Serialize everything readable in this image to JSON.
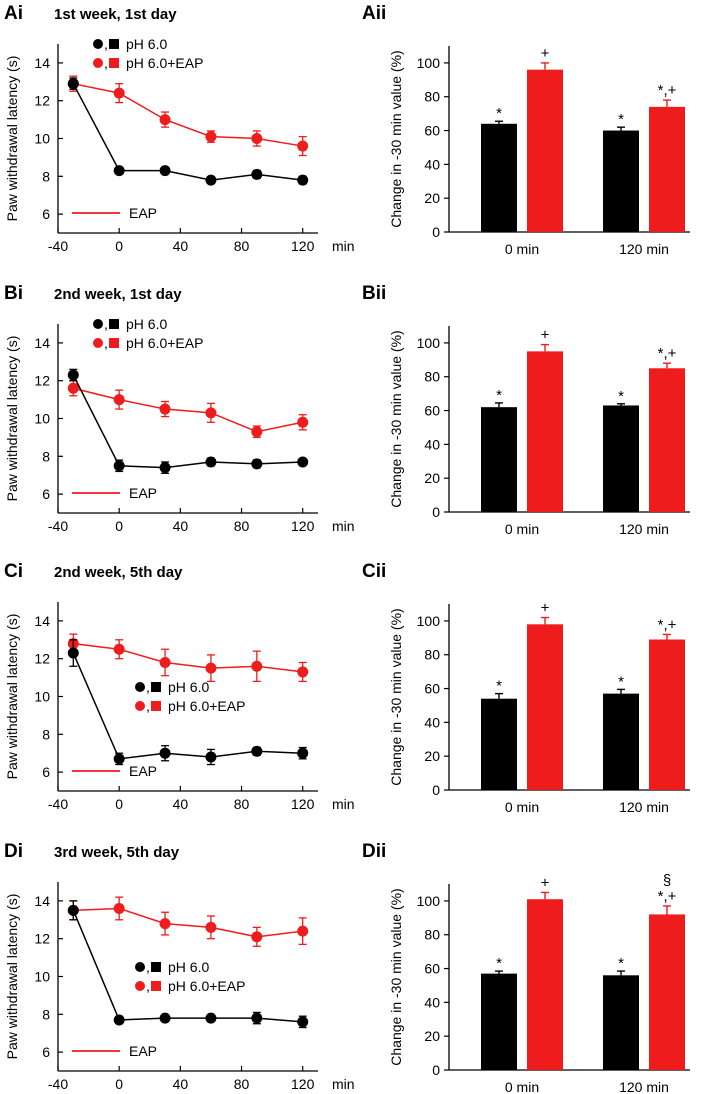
{
  "figure": {
    "rows": [
      {
        "line_panel_label": "Ai",
        "bar_panel_label": "Aii",
        "title": "1st week, 1st day"
      },
      {
        "line_panel_label": "Bi",
        "bar_panel_label": "Bii",
        "title": "2nd week, 1st day"
      },
      {
        "line_panel_label": "Ci",
        "bar_panel_label": "Cii",
        "title": "2nd week, 5th day"
      },
      {
        "line_panel_label": "Di",
        "bar_panel_label": "Dii",
        "title": "3rd week, 5th day"
      }
    ]
  },
  "colors": {
    "control": "#000000",
    "eap": "#ee1c1c"
  },
  "legend_separator": ",",
  "chart_data": [
    {
      "panel": "Ai",
      "type": "line",
      "title": "1st week, 1st day",
      "ylabel": "Paw withdrawal latency (s)",
      "xunit": "min",
      "x": [
        -30,
        0,
        30,
        60,
        90,
        120
      ],
      "xticks": [
        -40,
        0,
        40,
        80,
        120
      ],
      "yticks": [
        6,
        8,
        10,
        12,
        14
      ],
      "xlim": [
        -40,
        130
      ],
      "ylim": [
        5,
        15
      ],
      "legend_position": "top",
      "series": [
        {
          "name": "pH 6.0",
          "color": "#000000",
          "values": [
            12.9,
            8.3,
            8.3,
            7.8,
            8.1,
            7.8
          ],
          "errors": [
            0.3,
            0.1,
            0.1,
            0.1,
            0.2,
            0.2
          ]
        },
        {
          "name": "pH 6.0+EAP",
          "color": "#ee1c1c",
          "values": [
            12.9,
            12.4,
            11.0,
            10.1,
            10.0,
            9.6
          ],
          "errors": [
            0.4,
            0.5,
            0.4,
            0.3,
            0.4,
            0.5
          ]
        }
      ],
      "eap_bar_label": "EAP"
    },
    {
      "panel": "Aii",
      "type": "bar",
      "ylabel": "Change in -30 min value (%)",
      "categories": [
        "0 min",
        "120 min"
      ],
      "yticks": [
        0,
        20,
        40,
        60,
        80,
        100
      ],
      "ylim": [
        0,
        110
      ],
      "series": [
        {
          "name": "pH 6.0",
          "color": "#000000",
          "values": [
            64,
            60
          ],
          "errors": [
            1.5,
            2.0
          ]
        },
        {
          "name": "pH 6.0+EAP",
          "color": "#ee1c1c",
          "values": [
            96,
            74
          ],
          "errors": [
            4,
            4
          ]
        }
      ],
      "annotations": [
        [
          "*",
          "+"
        ],
        [
          "*",
          "*,+"
        ]
      ]
    },
    {
      "panel": "Bi",
      "type": "line",
      "title": "2nd week, 1st day",
      "ylabel": "Paw withdrawal latency (s)",
      "xunit": "min",
      "x": [
        -30,
        0,
        30,
        60,
        90,
        120
      ],
      "xticks": [
        -40,
        0,
        40,
        80,
        120
      ],
      "yticks": [
        6,
        8,
        10,
        12,
        14
      ],
      "xlim": [
        -40,
        130
      ],
      "ylim": [
        5,
        15
      ],
      "legend_position": "top",
      "series": [
        {
          "name": "pH 6.0",
          "color": "#000000",
          "values": [
            12.3,
            7.5,
            7.4,
            7.7,
            7.6,
            7.7
          ],
          "errors": [
            0.3,
            0.3,
            0.3,
            0.2,
            0.2,
            0.1
          ]
        },
        {
          "name": "pH 6.0+EAP",
          "color": "#ee1c1c",
          "values": [
            11.6,
            11.0,
            10.5,
            10.3,
            9.3,
            9.8
          ],
          "errors": [
            0.4,
            0.5,
            0.4,
            0.5,
            0.3,
            0.4
          ]
        }
      ],
      "eap_bar_label": "EAP"
    },
    {
      "panel": "Bii",
      "type": "bar",
      "ylabel": "Change in -30 min value (%)",
      "categories": [
        "0 min",
        "120 min"
      ],
      "yticks": [
        0,
        20,
        40,
        60,
        80,
        100
      ],
      "ylim": [
        0,
        110
      ],
      "series": [
        {
          "name": "pH 6.0",
          "color": "#000000",
          "values": [
            62,
            63
          ],
          "errors": [
            2.5,
            1.0
          ]
        },
        {
          "name": "pH 6.0+EAP",
          "color": "#ee1c1c",
          "values": [
            95,
            85
          ],
          "errors": [
            4,
            3
          ]
        }
      ],
      "annotations": [
        [
          "*",
          "+"
        ],
        [
          "*",
          "*,+"
        ]
      ]
    },
    {
      "panel": "Ci",
      "type": "line",
      "title": "2nd week, 5th day",
      "ylabel": "Paw withdrawal latency (s)",
      "xunit": "min",
      "x": [
        -30,
        0,
        30,
        60,
        90,
        120
      ],
      "xticks": [
        -40,
        0,
        40,
        80,
        120
      ],
      "yticks": [
        6,
        8,
        10,
        12,
        14
      ],
      "xlim": [
        -40,
        130
      ],
      "ylim": [
        5,
        15
      ],
      "legend_position": "middle-right",
      "series": [
        {
          "name": "pH 6.0",
          "color": "#000000",
          "values": [
            12.3,
            6.7,
            7.0,
            6.8,
            7.1,
            7.0
          ],
          "errors": [
            0.7,
            0.3,
            0.4,
            0.4,
            0.2,
            0.3
          ]
        },
        {
          "name": "pH 6.0+EAP",
          "color": "#ee1c1c",
          "values": [
            12.8,
            12.5,
            11.8,
            11.5,
            11.6,
            11.3
          ],
          "errors": [
            0.5,
            0.5,
            0.7,
            0.7,
            0.8,
            0.5
          ]
        }
      ],
      "eap_bar_label": "EAP"
    },
    {
      "panel": "Cii",
      "type": "bar",
      "ylabel": "Change in -30 min value (%)",
      "categories": [
        "0 min",
        "120 min"
      ],
      "yticks": [
        0,
        20,
        40,
        60,
        80,
        100
      ],
      "ylim": [
        0,
        110
      ],
      "series": [
        {
          "name": "pH 6.0",
          "color": "#000000",
          "values": [
            54,
            57
          ],
          "errors": [
            3,
            2.5
          ]
        },
        {
          "name": "pH 6.0+EAP",
          "color": "#ee1c1c",
          "values": [
            98,
            89
          ],
          "errors": [
            4,
            3
          ]
        }
      ],
      "annotations": [
        [
          "*",
          "+"
        ],
        [
          "*",
          "*,+"
        ]
      ]
    },
    {
      "panel": "Di",
      "type": "line",
      "title": "3rd week, 5th day",
      "ylabel": "Paw withdrawal latency (s)",
      "xunit": "min",
      "x": [
        -30,
        0,
        30,
        60,
        90,
        120
      ],
      "xticks": [
        -40,
        0,
        40,
        80,
        120
      ],
      "yticks": [
        6,
        8,
        10,
        12,
        14
      ],
      "xlim": [
        -40,
        130
      ],
      "ylim": [
        5,
        15
      ],
      "legend_position": "middle-right",
      "series": [
        {
          "name": "pH 6.0",
          "color": "#000000",
          "values": [
            13.5,
            7.7,
            7.8,
            7.8,
            7.8,
            7.6
          ],
          "errors": [
            0.5,
            0.1,
            0.1,
            0.1,
            0.3,
            0.3
          ]
        },
        {
          "name": "pH 6.0+EAP",
          "color": "#ee1c1c",
          "values": [
            13.5,
            13.6,
            12.8,
            12.6,
            12.1,
            12.4
          ],
          "errors": [
            0.5,
            0.6,
            0.6,
            0.6,
            0.5,
            0.7
          ]
        }
      ],
      "eap_bar_label": "EAP"
    },
    {
      "panel": "Dii",
      "type": "bar",
      "ylabel": "Change in -30 min value (%)",
      "categories": [
        "0 min",
        "120 min"
      ],
      "yticks": [
        0,
        20,
        40,
        60,
        80,
        100
      ],
      "ylim": [
        0,
        110
      ],
      "series": [
        {
          "name": "pH 6.0",
          "color": "#000000",
          "values": [
            57,
            56
          ],
          "errors": [
            1.5,
            2.5
          ]
        },
        {
          "name": "pH 6.0+EAP",
          "color": "#ee1c1c",
          "values": [
            101,
            92
          ],
          "errors": [
            4,
            5
          ]
        }
      ],
      "annotations": [
        [
          "*",
          "+"
        ],
        [
          "*",
          "*,+",
          "§"
        ]
      ]
    }
  ]
}
